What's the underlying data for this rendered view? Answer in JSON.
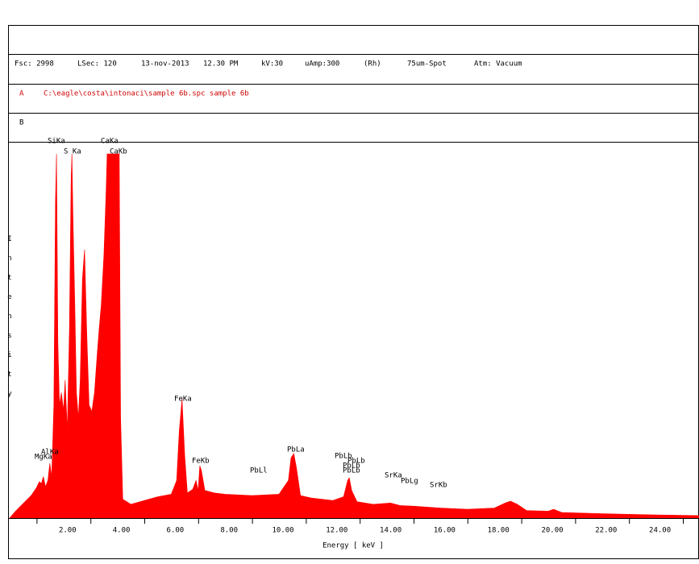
{
  "header": {
    "info": [
      "Fsc: 2998",
      "LSec: 120",
      "13-nov-2013",
      "12.30 PM",
      "kV:30",
      "uAmp:300",
      "(Rh)",
      "75um-Spot",
      "Atm: Vacuum"
    ],
    "row_a": {
      "tag": "A",
      "text": "C:\\eagle\\costa\\intonaci\\sample 6b.spc  sample 6b"
    },
    "row_b": {
      "tag": "B"
    }
  },
  "chart_data": {
    "type": "area",
    "x_label": "Energy [ keV ]",
    "y_label": "Intensity",
    "color": "#ff0000",
    "xlim": [
      0,
      25.6
    ],
    "ylim": [
      0,
      2998
    ],
    "xticks": [
      {
        "value": 2,
        "label": "2.00"
      },
      {
        "value": 4,
        "label": "4.00"
      },
      {
        "value": 6,
        "label": "6.00"
      },
      {
        "value": 8,
        "label": "8.00"
      },
      {
        "value": 10,
        "label": "10.00"
      },
      {
        "value": 12,
        "label": "12.00"
      },
      {
        "value": 14,
        "label": "14.00"
      },
      {
        "value": 16,
        "label": "16.00"
      },
      {
        "value": 18,
        "label": "18.00"
      },
      {
        "value": 20,
        "label": "20.00"
      },
      {
        "value": 22,
        "label": "22.00"
      },
      {
        "value": 24,
        "label": "24.00"
      }
    ],
    "xminor_ticks": [
      1,
      3,
      5,
      7,
      9,
      11,
      13,
      15,
      17,
      19,
      21,
      23,
      25
    ],
    "x": [
      0,
      0.2,
      0.5,
      0.8,
      1.0,
      1.1,
      1.18,
      1.25,
      1.33,
      1.42,
      1.49,
      1.56,
      1.64,
      1.7,
      1.74,
      1.79,
      1.85,
      1.92,
      2.0,
      2.06,
      2.14,
      2.22,
      2.28,
      2.31,
      2.35,
      2.42,
      2.48,
      2.55,
      2.62,
      2.7,
      2.78,
      2.86,
      2.95,
      3.05,
      3.15,
      3.25,
      3.32,
      3.4,
      3.5,
      3.58,
      3.62,
      3.69,
      3.8,
      3.92,
      4.01,
      4.07,
      4.12,
      4.2,
      4.5,
      5.0,
      5.5,
      6.0,
      6.2,
      6.3,
      6.4,
      6.5,
      6.6,
      6.8,
      6.92,
      7.0,
      7.06,
      7.12,
      7.25,
      7.6,
      8.0,
      9.0,
      10.0,
      10.35,
      10.45,
      10.55,
      10.65,
      10.8,
      11.2,
      12.0,
      12.4,
      12.55,
      12.61,
      12.7,
      12.9,
      13.5,
      14.14,
      14.5,
      15.0,
      16.0,
      17.0,
      18.0,
      18.4,
      18.6,
      18.85,
      19.2,
      20.0,
      20.2,
      20.5,
      22.0,
      24.0,
      25.6
    ],
    "values": [
      0,
      51,
      116,
      180,
      244,
      289,
      276,
      330,
      250,
      300,
      437,
      330,
      900,
      2523,
      2902,
      1400,
      900,
      1000,
      860,
      1100,
      700,
      1500,
      2700,
      2902,
      2400,
      1700,
      1000,
      800,
      1100,
      1900,
      2140,
      1500,
      900,
      850,
      1000,
      1300,
      1500,
      1700,
      2100,
      2600,
      2902,
      2902,
      2902,
      2902,
      2902,
      2902,
      800,
      150,
      110,
      140,
      170,
      190,
      300,
      700,
      950,
      500,
      200,
      230,
      300,
      220,
      417,
      380,
      220,
      200,
      190,
      180,
      190,
      300,
      480,
      514,
      400,
      180,
      160,
      140,
      170,
      300,
      321,
      220,
      130,
      110,
      120,
      100,
      95,
      80,
      70,
      80,
      120,
      135,
      110,
      60,
      55,
      70,
      45,
      35,
      25,
      20
    ],
    "peak_labels": [
      "SiKa",
      "S Ka",
      "CaKa",
      "CaKb",
      "MgKa",
      "AlKa",
      "FeKa",
      "FeKb",
      "PbLl",
      "PbLa",
      "PbLb",
      "PbLb",
      "PbLb",
      "PbLb",
      "SrKa",
      "PbLg",
      "SrKb"
    ]
  }
}
